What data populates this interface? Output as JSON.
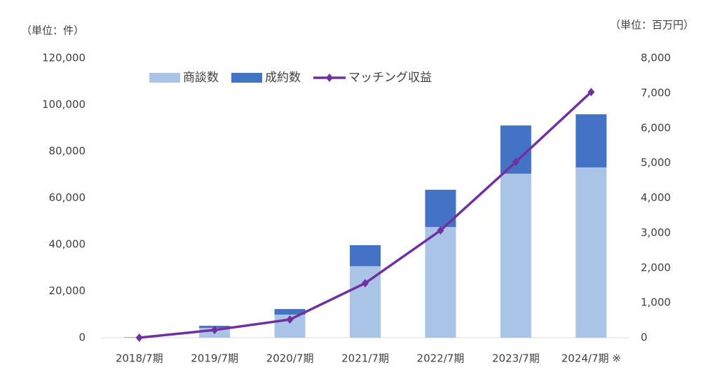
{
  "chart_data": {
    "type": "bar",
    "y_axis_label": "（単位：件）",
    "y2_axis_label": "（単位：百万円）",
    "categories": [
      "2018/7期",
      "2019/7期",
      "2020/7期",
      "2021/7期",
      "2022/7期",
      "2023/7期",
      "2024/7期 ※"
    ],
    "series": [
      {
        "name": "商談数",
        "color": "#a9c4e6",
        "values": [
          200,
          4200,
          9900,
          30700,
          47500,
          70400,
          73100
        ]
      },
      {
        "name": "成約数",
        "color": "#4472c4",
        "values": [
          100,
          900,
          2400,
          9000,
          16000,
          20700,
          22800
        ]
      },
      {
        "name": "マッチング収益",
        "color": "#7030a0",
        "type": "line",
        "axis": "y2",
        "values": [
          0,
          220,
          520,
          1560,
          3070,
          5030,
          7030
        ]
      }
    ],
    "stacked": true,
    "ylim": [
      0,
      120000
    ],
    "yticks": [
      0,
      {
        "value": 20000,
        "label": "20,000"
      },
      {
        "value": 40000,
        "label": "40,000"
      },
      {
        "value": 60000,
        "label": "60,000"
      },
      {
        "value": 80000,
        "label": "80,000"
      },
      {
        "value": 100000,
        "label": "100,000"
      },
      {
        "value": 120000,
        "label": "120,000"
      }
    ],
    "y2lim": [
      0,
      8000
    ],
    "y2ticks": [
      0,
      {
        "value": 1000,
        "label": "1,000"
      },
      {
        "value": 2000,
        "label": "2,000"
      },
      {
        "value": 3000,
        "label": "3,000"
      },
      {
        "value": 4000,
        "label": "4,000"
      },
      {
        "value": 5000,
        "label": "5,000"
      },
      {
        "value": 6000,
        "label": "6,000"
      },
      {
        "value": 7000,
        "label": "7,000"
      },
      {
        "value": 8000,
        "label": "8,000"
      }
    ],
    "grid": false,
    "legend": "top"
  }
}
